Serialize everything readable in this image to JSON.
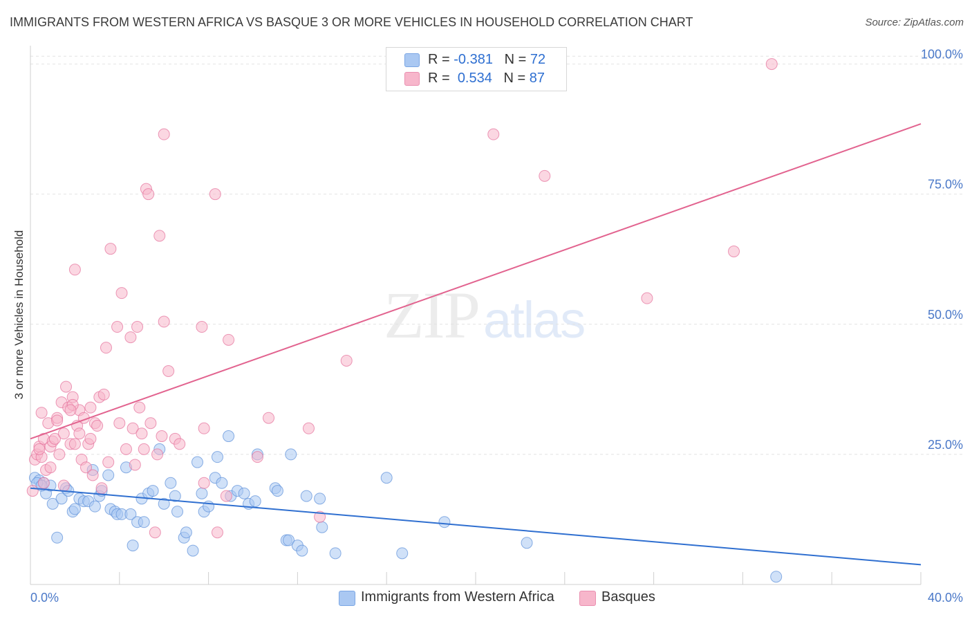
{
  "title": "IMMIGRANTS FROM WESTERN AFRICA VS BASQUE 3 OR MORE VEHICLES IN HOUSEHOLD CORRELATION CHART",
  "source": "Source: ZipAtlas.com",
  "watermark": {
    "zip": "ZIP",
    "atlas": "atlas"
  },
  "legend": {
    "r_label": "R =",
    "n_label": "N =",
    "rows": [
      {
        "r": "-0.381",
        "n": "72",
        "color": "#aac8f2"
      },
      {
        "r": "0.534",
        "n": "87",
        "color": "#f7b6cb"
      }
    ]
  },
  "chart_data": {
    "type": "scatter",
    "title": "IMMIGRANTS FROM WESTERN AFRICA VS BASQUE 3 OR MORE VEHICLES IN HOUSEHOLD CORRELATION CHART",
    "xlabel": "",
    "ylabel": "3 or more Vehicles in Household",
    "xlim": [
      0,
      40
    ],
    "ylim": [
      0,
      103
    ],
    "x_tick_labels": [
      "0.0%",
      "40.0%"
    ],
    "y_tick_labels": [
      "25.0%",
      "50.0%",
      "75.0%",
      "100.0%"
    ],
    "y_ticks": [
      25,
      50,
      75,
      100
    ],
    "grid": true,
    "legend_position": "top-center",
    "series": [
      {
        "name": "Immigrants from Western Africa",
        "color": "#5b8fd9",
        "fill": "#aac8f2",
        "trend": {
          "x0": 0,
          "y0": 18.5,
          "x1": 40,
          "y1": 3.8
        },
        "points": [
          [
            0.2,
            20.5
          ],
          [
            0.4,
            20.0
          ],
          [
            0.6,
            19.5
          ],
          [
            0.7,
            17.5
          ],
          [
            0.9,
            19.0
          ],
          [
            1.0,
            15.5
          ],
          [
            1.2,
            9.0
          ],
          [
            1.4,
            16.5
          ],
          [
            1.6,
            18.5
          ],
          [
            1.7,
            18.0
          ],
          [
            1.9,
            14.0
          ],
          [
            2.0,
            14.5
          ],
          [
            2.2,
            16.5
          ],
          [
            2.4,
            16.0
          ],
          [
            2.6,
            16.0
          ],
          [
            2.8,
            22.0
          ],
          [
            2.9,
            15.0
          ],
          [
            3.1,
            17.0
          ],
          [
            3.2,
            18.0
          ],
          [
            3.5,
            21.0
          ],
          [
            3.6,
            14.5
          ],
          [
            3.8,
            14.0
          ],
          [
            3.9,
            13.5
          ],
          [
            4.1,
            13.5
          ],
          [
            4.3,
            22.5
          ],
          [
            4.5,
            13.5
          ],
          [
            4.6,
            7.5
          ],
          [
            4.8,
            12.0
          ],
          [
            5.0,
            16.5
          ],
          [
            5.1,
            12.0
          ],
          [
            5.3,
            17.5
          ],
          [
            5.5,
            18.0
          ],
          [
            5.8,
            26.0
          ],
          [
            6.0,
            15.5
          ],
          [
            6.3,
            19.5
          ],
          [
            6.5,
            17.0
          ],
          [
            6.6,
            14.0
          ],
          [
            6.9,
            9.0
          ],
          [
            7.0,
            10.0
          ],
          [
            7.3,
            6.5
          ],
          [
            7.5,
            23.5
          ],
          [
            7.7,
            17.5
          ],
          [
            7.8,
            14.0
          ],
          [
            8.0,
            15.0
          ],
          [
            8.3,
            20.5
          ],
          [
            8.4,
            24.5
          ],
          [
            8.6,
            19.5
          ],
          [
            8.9,
            28.5
          ],
          [
            9.0,
            17.0
          ],
          [
            9.3,
            18.0
          ],
          [
            9.6,
            17.5
          ],
          [
            9.8,
            15.5
          ],
          [
            10.1,
            16.0
          ],
          [
            10.2,
            25.0
          ],
          [
            11.0,
            18.5
          ],
          [
            11.1,
            18.0
          ],
          [
            11.5,
            8.5
          ],
          [
            11.6,
            8.5
          ],
          [
            11.7,
            25.0
          ],
          [
            12.0,
            7.5
          ],
          [
            12.2,
            6.5
          ],
          [
            12.4,
            17.0
          ],
          [
            13.0,
            16.5
          ],
          [
            13.1,
            11.0
          ],
          [
            13.7,
            6.0
          ],
          [
            16.0,
            20.5
          ],
          [
            16.7,
            6.0
          ],
          [
            18.6,
            12.0
          ],
          [
            22.3,
            8.0
          ],
          [
            33.5,
            1.5
          ],
          [
            0.3,
            19.5
          ],
          [
            0.5,
            19.0
          ]
        ]
      },
      {
        "name": "Basques",
        "color": "#e46f9a",
        "fill": "#f7b6cb",
        "trend": {
          "x0": 0,
          "y0": 28.0,
          "x1": 40,
          "y1": 88.5
        },
        "points": [
          [
            0.1,
            18.0
          ],
          [
            0.2,
            24.0
          ],
          [
            0.3,
            25.0
          ],
          [
            0.4,
            26.5
          ],
          [
            0.5,
            24.5
          ],
          [
            0.5,
            33.0
          ],
          [
            0.6,
            28.0
          ],
          [
            0.7,
            22.0
          ],
          [
            0.8,
            31.0
          ],
          [
            0.9,
            26.5
          ],
          [
            1.0,
            27.5
          ],
          [
            1.1,
            28.0
          ],
          [
            1.2,
            32.0
          ],
          [
            1.3,
            25.0
          ],
          [
            1.4,
            35.0
          ],
          [
            1.5,
            19.0
          ],
          [
            1.6,
            38.0
          ],
          [
            1.7,
            34.0
          ],
          [
            1.8,
            27.0
          ],
          [
            1.9,
            36.0
          ],
          [
            2.0,
            27.0
          ],
          [
            2.1,
            30.5
          ],
          [
            2.2,
            33.5
          ],
          [
            2.3,
            24.0
          ],
          [
            2.4,
            32.0
          ],
          [
            2.5,
            22.5
          ],
          [
            2.6,
            27.0
          ],
          [
            2.7,
            34.0
          ],
          [
            2.8,
            21.0
          ],
          [
            2.9,
            31.0
          ],
          [
            3.0,
            30.5
          ],
          [
            3.1,
            36.0
          ],
          [
            3.2,
            18.5
          ],
          [
            3.3,
            36.5
          ],
          [
            3.5,
            23.5
          ],
          [
            3.6,
            64.5
          ],
          [
            3.9,
            49.5
          ],
          [
            4.0,
            31.0
          ],
          [
            4.1,
            56.0
          ],
          [
            4.3,
            26.0
          ],
          [
            4.5,
            47.5
          ],
          [
            4.6,
            30.0
          ],
          [
            4.7,
            23.0
          ],
          [
            4.8,
            49.5
          ],
          [
            4.9,
            34.0
          ],
          [
            5.0,
            29.0
          ],
          [
            5.1,
            26.0
          ],
          [
            5.2,
            76.0
          ],
          [
            5.3,
            75.0
          ],
          [
            5.4,
            31.0
          ],
          [
            5.6,
            10.0
          ],
          [
            5.7,
            25.0
          ],
          [
            5.8,
            67.0
          ],
          [
            5.9,
            28.5
          ],
          [
            6.0,
            86.5
          ],
          [
            6.0,
            50.5
          ],
          [
            6.2,
            41.0
          ],
          [
            6.5,
            28.0
          ],
          [
            6.7,
            27.0
          ],
          [
            7.7,
            49.5
          ],
          [
            7.8,
            30.0
          ],
          [
            7.8,
            19.5
          ],
          [
            8.3,
            75.0
          ],
          [
            8.4,
            10.0
          ],
          [
            8.8,
            17.0
          ],
          [
            8.9,
            47.0
          ],
          [
            10.2,
            24.5
          ],
          [
            10.7,
            32.0
          ],
          [
            12.5,
            30.0
          ],
          [
            13.0,
            13.0
          ],
          [
            14.2,
            43.0
          ],
          [
            20.8,
            86.5
          ],
          [
            23.1,
            78.5
          ],
          [
            27.7,
            55.0
          ],
          [
            31.6,
            64.0
          ],
          [
            33.3,
            100.0
          ],
          [
            1.9,
            34.5
          ],
          [
            2.2,
            29.0
          ],
          [
            0.9,
            22.5
          ],
          [
            1.2,
            31.5
          ],
          [
            1.5,
            29.0
          ],
          [
            2.7,
            28.0
          ],
          [
            3.4,
            45.5
          ],
          [
            2.0,
            60.5
          ],
          [
            1.8,
            33.5
          ],
          [
            0.6,
            19.5
          ],
          [
            0.4,
            26.0
          ]
        ]
      }
    ]
  }
}
